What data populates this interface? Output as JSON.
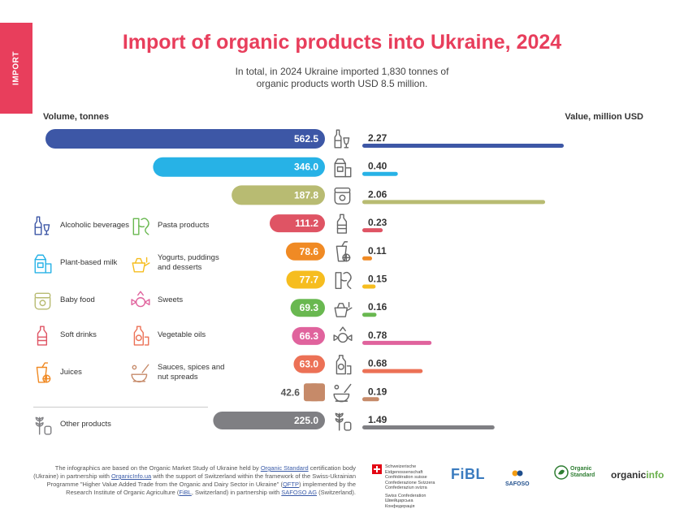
{
  "side_tab": "IMPORT",
  "title": "Import of organic products into Ukraine, 2024",
  "subtitle": "In total, in 2024 Ukraine imported 1,830 tonnes of organic products worth USD 8.5 million.",
  "chart_data": {
    "type": "bar",
    "left_axis_label": "Volume, tonnes",
    "right_axis_label": "Value, million USD",
    "volume_tonnes": {
      "categories": [
        "Alcoholic beverages",
        "Plant-based milk",
        "Baby food",
        "Soft drinks",
        "Juices",
        "Yogurts, puddings and desserts",
        "Pasta products",
        "Sweets",
        "Vegetable oils",
        "Sauces, spices and nut spreads",
        "Other products"
      ],
      "values": [
        562.5,
        346.0,
        187.8,
        111.2,
        78.6,
        77.7,
        69.3,
        66.3,
        63.0,
        42.6,
        225.0
      ],
      "labels": [
        "562.5",
        "346.0",
        "187.8",
        "111.2",
        "78.6",
        "77.7",
        "69.3",
        "66.3",
        "63.0",
        "42.6",
        "225.0"
      ]
    },
    "value_million_usd": {
      "values": [
        2.27,
        0.4,
        2.06,
        0.23,
        0.11,
        0.15,
        0.16,
        0.78,
        0.68,
        0.19,
        1.49
      ],
      "labels": [
        "2.27",
        "0.40",
        "2.06",
        "0.23",
        "0.11",
        "0.15",
        "0.16",
        "0.78",
        "0.68",
        "0.19",
        "1.49"
      ]
    },
    "icons": [
      "wine-bottle-icon",
      "milk-carton-icon",
      "baby-food-jar-icon",
      "soft-drink-bottle-icon",
      "juice-glass-icon",
      "pasta-icon",
      "yogurt-icon",
      "sweets-icon",
      "oil-bottle-icon",
      "mortar-spices-icon",
      "wheat-jar-icon"
    ],
    "colors": [
      "#3d57a6",
      "#27b2e6",
      "#b8bb72",
      "#df5464",
      "#f08a24",
      "#f6bd1f",
      "#69b850",
      "#e0639d",
      "#ec7156",
      "#c68a69",
      "#7f7f83"
    ]
  },
  "legend": [
    {
      "label": "Alcoholic beverages",
      "icon": "wine-bottle-icon"
    },
    {
      "label": "Pasta products",
      "icon": "pasta-icon"
    },
    {
      "label": "Plant-based milk",
      "icon": "milk-carton-icon"
    },
    {
      "label": "Yogurts, puddings and desserts",
      "icon": "yogurt-icon"
    },
    {
      "label": "Baby food",
      "icon": "baby-food-jar-icon"
    },
    {
      "label": "Sweets",
      "icon": "sweets-icon"
    },
    {
      "label": "Soft drinks",
      "icon": "soft-drink-bottle-icon"
    },
    {
      "label": "Vegetable oils",
      "icon": "oil-bottle-icon"
    },
    {
      "label": "Juices",
      "icon": "juice-glass-icon"
    },
    {
      "label": "Sauces, spices and nut spreads",
      "icon": "mortar-spices-icon"
    },
    {
      "label": "Other products",
      "icon": "wheat-jar-icon"
    }
  ],
  "footnote": {
    "t1": "The infographics are based on the Organic Market Study of Ukraine held by ",
    "l1": "Organic Standard",
    "t2": " certification body (Ukraine) in partnership with ",
    "l2": "OrganicInfo.ua",
    "t3": " with the support of Switzerland within the framework of the Swiss-Ukrainian Programme \"Higher Value Added Trade from the Organic and Dairy Sector in Ukraine\" (",
    "l3": "QFTP",
    "t4": ") implemented by the Research Institute of Organic Agriculture (",
    "l4": "FiBL",
    "t5": ", Switzerland) in partnership with ",
    "l5": "SAFOSO AG",
    "t6": " (Switzerland)."
  },
  "logos": {
    "swiss_1": "Schweizerische Eidgenossenschaft Confédération suisse Confederazione Svizzera Confederaziun svizra",
    "swiss_2": "Swiss Confederation Швейцарська Конфедерація",
    "fibl": "FiBL",
    "safoso": "SAFOSO",
    "organic_standard": "Organic Standard",
    "organicinfo_a": "organic",
    "organicinfo_b": "info"
  }
}
